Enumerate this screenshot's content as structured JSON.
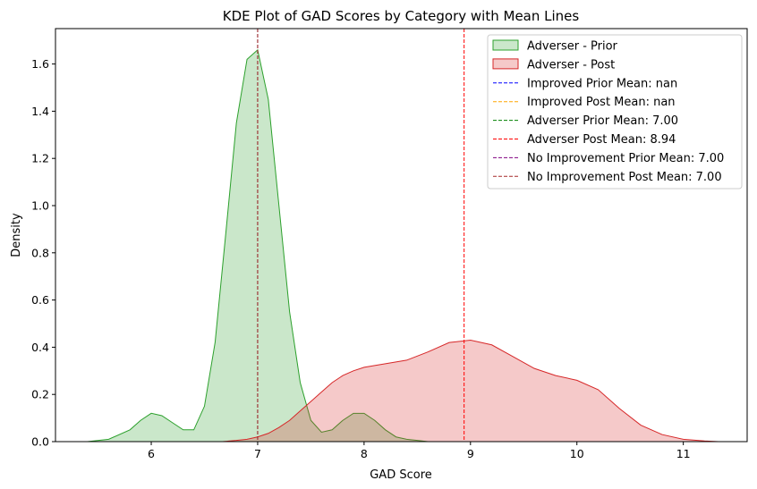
{
  "chart_data": {
    "type": "area",
    "title": "KDE Plot of GAD Scores by Category with Mean Lines",
    "xlabel": "GAD Score",
    "ylabel": "Density",
    "xlim": [
      5.1,
      11.6
    ],
    "ylim": [
      0,
      1.75
    ],
    "xticks": [
      6,
      7,
      8,
      9,
      10,
      11
    ],
    "yticks": [
      0.0,
      0.2,
      0.4,
      0.6,
      0.8,
      1.0,
      1.2,
      1.4,
      1.6
    ],
    "ytick_labels": [
      "0.0",
      "0.2",
      "0.4",
      "0.6",
      "0.8",
      "1.0",
      "1.2",
      "1.4",
      "1.6"
    ],
    "grid": false,
    "legend_position": "top-right",
    "series": [
      {
        "name": "Adverser - Prior",
        "color": "#2ca02c",
        "fill": "#2ca02c",
        "x": [
          5.4,
          5.6,
          5.8,
          5.9,
          6.0,
          6.1,
          6.2,
          6.3,
          6.4,
          6.5,
          6.6,
          6.7,
          6.8,
          6.9,
          7.0,
          7.1,
          7.2,
          7.3,
          7.4,
          7.5,
          7.6,
          7.7,
          7.8,
          7.9,
          8.0,
          8.1,
          8.2,
          8.3,
          8.4,
          8.5,
          8.6
        ],
        "y": [
          0.0,
          0.01,
          0.05,
          0.09,
          0.12,
          0.11,
          0.08,
          0.05,
          0.05,
          0.15,
          0.42,
          0.88,
          1.35,
          1.62,
          1.66,
          1.45,
          1.0,
          0.55,
          0.25,
          0.09,
          0.04,
          0.05,
          0.09,
          0.12,
          0.12,
          0.09,
          0.05,
          0.02,
          0.01,
          0.005,
          0.0
        ]
      },
      {
        "name": "Adverser - Post",
        "color": "#d62728",
        "fill": "#d62728",
        "x": [
          6.67,
          6.8,
          6.9,
          7.0,
          7.1,
          7.2,
          7.3,
          7.4,
          7.5,
          7.6,
          7.7,
          7.8,
          7.9,
          8.0,
          8.2,
          8.4,
          8.6,
          8.8,
          9.0,
          9.2,
          9.4,
          9.6,
          9.8,
          10.0,
          10.2,
          10.4,
          10.6,
          10.8,
          11.0,
          11.2,
          11.33
        ],
        "y": [
          0.0,
          0.005,
          0.01,
          0.02,
          0.035,
          0.06,
          0.09,
          0.13,
          0.17,
          0.21,
          0.25,
          0.28,
          0.3,
          0.315,
          0.33,
          0.345,
          0.38,
          0.42,
          0.43,
          0.41,
          0.36,
          0.31,
          0.28,
          0.26,
          0.22,
          0.14,
          0.07,
          0.03,
          0.01,
          0.003,
          0.0
        ]
      }
    ],
    "mean_lines": [
      {
        "label": "Improved Prior Mean: nan",
        "color": "#0000ff",
        "x": null
      },
      {
        "label": "Improved Post Mean: nan",
        "color": "#ffa500",
        "x": null
      },
      {
        "label": "Adverser Prior Mean: 7.00",
        "color": "#008000",
        "x": 7.0
      },
      {
        "label": "Adverser Post Mean: 8.94",
        "color": "#ff0000",
        "x": 8.94
      },
      {
        "label": "No Improvement Prior Mean: 7.00",
        "color": "#800080",
        "x": 7.0
      },
      {
        "label": "No Improvement Post Mean: 7.00",
        "color": "#a52a2a",
        "x": 7.0
      }
    ]
  }
}
